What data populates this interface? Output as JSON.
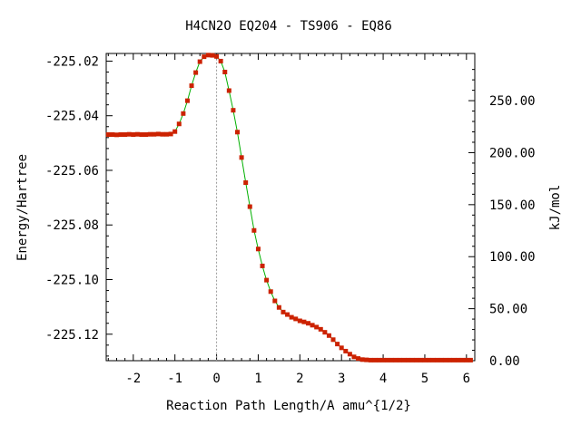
{
  "chart_data": {
    "type": "line",
    "title": "H4CN2O   EQ204 - TS906 - EQ86",
    "xlabel": "Reaction Path Length/A amu^{1/2}",
    "ylabel": "Energy/Hartree",
    "y2label": "kJ/mol",
    "xlim": [
      -2.65,
      6.2
    ],
    "ylim": [
      -225.1297,
      -225.0172
    ],
    "x_ticks": [
      -2,
      -1,
      0,
      1,
      2,
      3,
      4,
      5,
      6
    ],
    "x_tick_labels": [
      "-2",
      "-1",
      "0",
      "1",
      "2",
      "3",
      "4",
      "5",
      "6"
    ],
    "y_ticks": [
      -225.02,
      -225.04,
      -225.06,
      -225.08,
      -225.1,
      -225.12
    ],
    "y_tick_labels": [
      "-225.02",
      "-225.04",
      "-225.06",
      "-225.08",
      "-225.10",
      "-225.12"
    ],
    "y2_ticks": [
      0,
      50,
      100,
      150,
      200,
      250
    ],
    "y2_tick_labels": [
      "0.00",
      "50.00",
      "100.00",
      "150.00",
      "200.00",
      "250.00"
    ],
    "y2_zero_hartree": -225.1297,
    "ts_marker_x": 0,
    "line_color": "#00b000",
    "marker_color": "#cc2200",
    "grid": false,
    "series": [
      {
        "x": [
          -2.6,
          -2.5,
          -2.4,
          -2.3,
          -2.2,
          -2.1,
          -2.0,
          -1.9,
          -1.8,
          -1.7,
          -1.6,
          -1.5,
          -1.4,
          -1.3,
          -1.2,
          -1.1,
          -1.0,
          -0.9,
          -0.8,
          -0.7,
          -0.6,
          -0.5,
          -0.4,
          -0.3,
          -0.2,
          -0.1,
          0.0,
          0.1,
          0.2,
          0.3,
          0.4,
          0.5,
          0.6,
          0.7,
          0.8,
          0.9,
          1.0,
          1.1,
          1.2,
          1.3,
          1.4,
          1.5,
          1.6,
          1.7,
          1.8,
          1.9,
          2.0,
          2.1,
          2.2,
          2.3,
          2.4,
          2.5,
          2.6,
          2.7,
          2.8,
          2.9,
          3.0,
          3.1,
          3.2,
          3.3,
          3.4,
          3.5,
          3.6,
          3.7,
          3.8,
          3.9,
          4.0,
          4.1,
          4.2,
          4.3,
          4.4,
          4.5,
          4.6,
          4.7,
          4.8,
          4.9,
          5.0,
          5.1,
          5.2,
          5.3,
          5.4,
          5.5,
          5.6,
          5.7,
          5.8,
          5.9,
          6.0,
          6.1
        ],
        "y": [
          -225.0469,
          -225.0469,
          -225.047,
          -225.0469,
          -225.0469,
          -225.0468,
          -225.0469,
          -225.0468,
          -225.0469,
          -225.0469,
          -225.0468,
          -225.0468,
          -225.0467,
          -225.0468,
          -225.0468,
          -225.0467,
          -225.0458,
          -225.043,
          -225.0392,
          -225.0345,
          -225.029,
          -225.0242,
          -225.0202,
          -225.0184,
          -225.0178,
          -225.0179,
          -225.0183,
          -225.02,
          -225.024,
          -225.0308,
          -225.038,
          -225.046,
          -225.0553,
          -225.0645,
          -225.0733,
          -225.082,
          -225.0888,
          -225.095,
          -225.1002,
          -225.1044,
          -225.1078,
          -225.1102,
          -225.1119,
          -225.1128,
          -225.1138,
          -225.1144,
          -225.1151,
          -225.1155,
          -225.116,
          -225.1167,
          -225.1174,
          -225.1182,
          -225.1193,
          -225.1205,
          -225.122,
          -225.1236,
          -225.125,
          -225.1262,
          -225.1273,
          -225.1283,
          -225.1289,
          -225.1293,
          -225.1294,
          -225.1295,
          -225.1295,
          -225.1295,
          -225.1295,
          -225.1295,
          -225.1295,
          -225.1295,
          -225.1295,
          -225.1295,
          -225.1295,
          -225.1295,
          -225.1295,
          -225.1295,
          -225.1295,
          -225.1295,
          -225.1295,
          -225.1295,
          -225.1295,
          -225.1295,
          -225.1295,
          -225.1295,
          -225.1295,
          -225.1295,
          -225.1295,
          -225.1295
        ]
      }
    ]
  }
}
